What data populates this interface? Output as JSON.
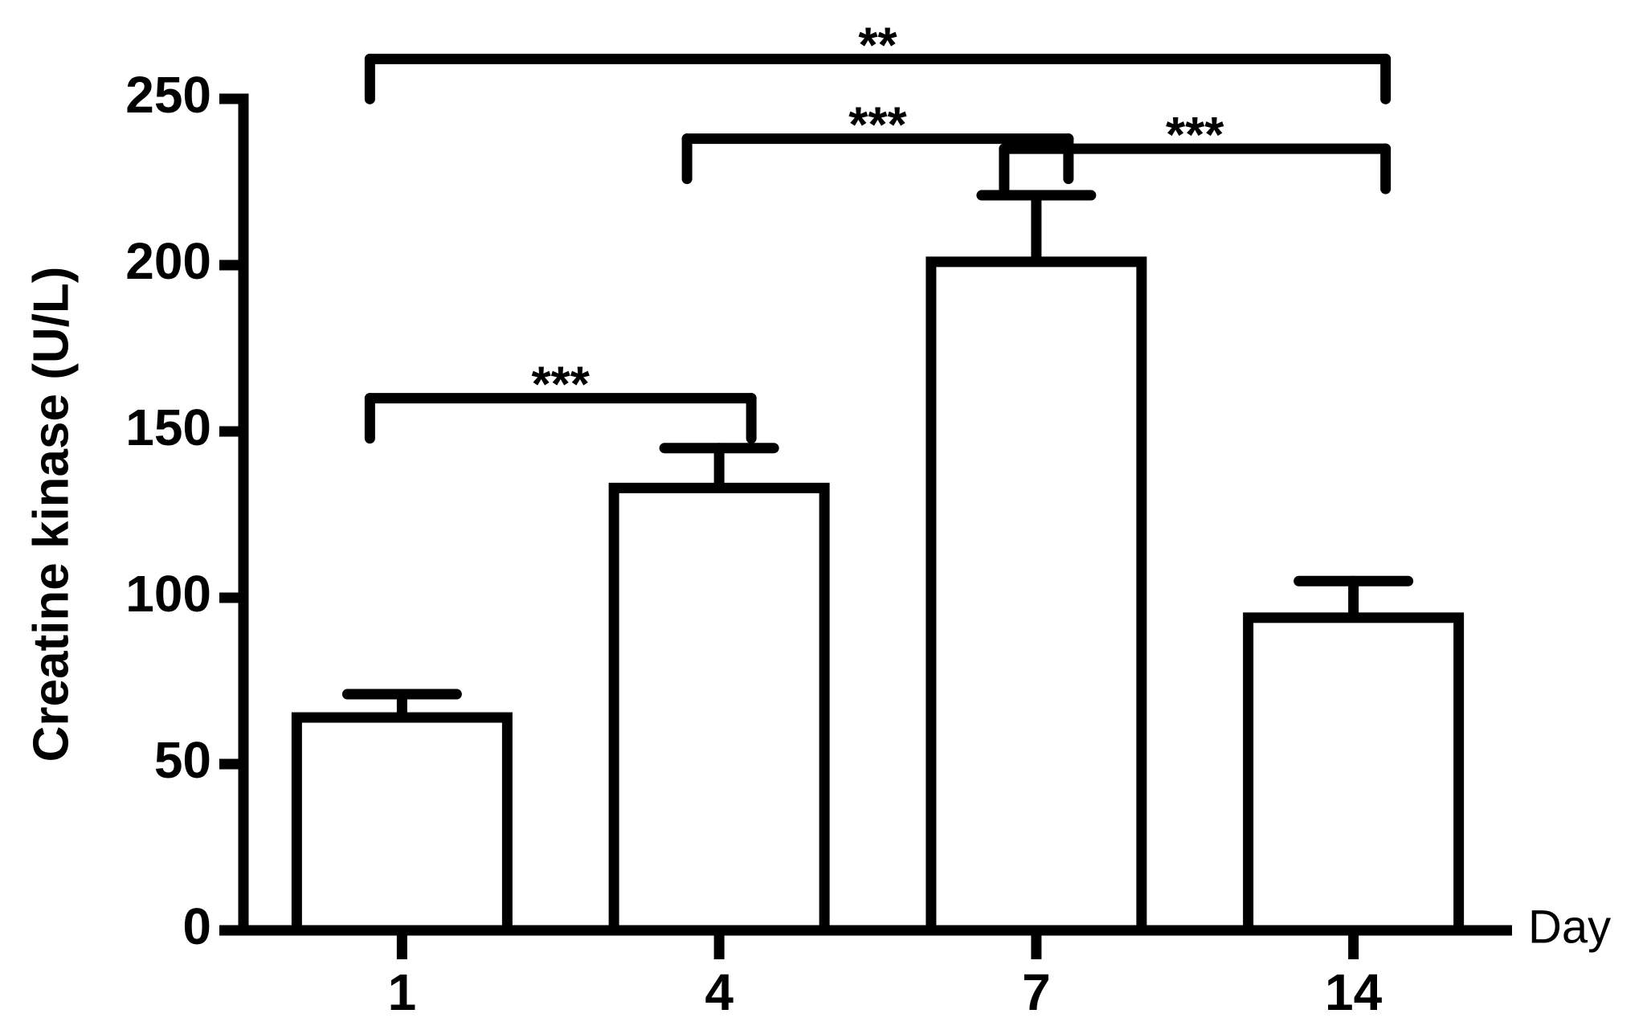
{
  "chart_data": {
    "type": "bar",
    "y_label": "Creatine kinase (U/L)",
    "x_label": "Day",
    "categories": [
      "1",
      "4",
      "7",
      "14"
    ],
    "values": [
      64,
      133,
      201,
      94
    ],
    "errors": [
      7,
      12,
      20,
      11
    ],
    "color": "#ffffff",
    "ylim": [
      0,
      250
    ],
    "yticks": [
      0,
      50,
      100,
      150,
      200,
      250
    ],
    "annotations": [
      {
        "from": "1",
        "to": "4",
        "y": 160,
        "label": "***"
      },
      {
        "from": "4",
        "to": "7",
        "y": 238,
        "label": "***"
      },
      {
        "from": "7",
        "to": "14",
        "y": 235,
        "label": "***"
      },
      {
        "from": "1",
        "to": "14",
        "y": 262,
        "label": "**"
      }
    ]
  }
}
